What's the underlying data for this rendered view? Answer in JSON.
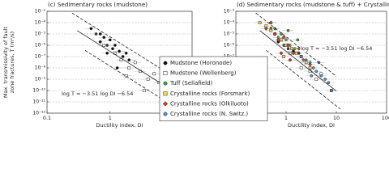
{
  "chart_data": [
    {
      "type": "scatter",
      "title": "(c) Sedimentary rocks (mudstone)",
      "xlabel": "Ductility index, DI",
      "ylabel": [
        "Max. transmissivity of fault",
        "zone fractures, T (m²/s)"
      ],
      "xscale": "log",
      "yscale": "log",
      "grid": true,
      "xlim": [
        0.1,
        20
      ],
      "ylim": [
        1e-12,
        0.001
      ],
      "xticks": [
        0.1,
        1,
        10
      ],
      "yticks": [
        {
          "value": 0.001,
          "label": "10⁻³"
        },
        {
          "value": 0.0001,
          "label": "10⁻⁴"
        },
        {
          "value": 1e-05,
          "label": "10⁻⁵"
        },
        {
          "value": 1e-06,
          "label": "10⁻⁶"
        },
        {
          "value": 1e-07,
          "label": "10⁻⁷"
        },
        {
          "value": 1e-08,
          "label": "10⁻⁸"
        },
        {
          "value": 1e-09,
          "label": "10⁻⁹"
        },
        {
          "value": 1e-10,
          "label": "10⁻¹⁰"
        },
        {
          "value": 1e-11,
          "label": "10⁻¹¹"
        },
        {
          "value": 1e-12,
          "label": "10⁻¹²"
        }
      ],
      "series": [
        {
          "marker": "circle",
          "color": "#111111",
          "x": [
            0.5,
            0.6,
            0.7,
            0.8,
            0.9,
            1.0,
            1.1,
            1.2,
            1.4,
            1.6,
            1.8,
            2.0,
            0.7,
            0.9,
            1.3
          ],
          "y": [
            3e-05,
            1e-05,
            2e-06,
            5e-06,
            1e-06,
            3e-06,
            5e-07,
            1e-06,
            3e-07,
            1e-07,
            2e-07,
            5e-08,
            1e-05,
            2e-07,
            1e-08
          ]
        },
        {
          "marker": "square",
          "color": "#ffffff",
          "x": [
            0.8,
            1.2,
            1.5,
            2,
            2.5,
            3,
            4,
            5,
            6,
            8,
            1.8,
            3.5
          ],
          "y": [
            1e-06,
            2e-07,
            5e-08,
            1e-08,
            3e-08,
            5e-09,
            1e-09,
            3e-09,
            5e-10,
            1e-10,
            2e-09,
            1e-10
          ]
        }
      ],
      "lines": [
        {
          "style": "solid",
          "x": [
            0.3,
            10
          ],
          "y": [
            2e-05,
            9e-11
          ]
        },
        {
          "style": "dashed",
          "x": [
            0.25,
            10
          ],
          "y": [
            0.0007,
            1.8e-09
          ]
        },
        {
          "style": "dashed",
          "x": [
            0.4,
            12
          ],
          "y": [
            3.6e-07,
            2.3e-12
          ]
        }
      ],
      "annotation": "log T = −3.51 log DI −6.54"
    },
    {
      "type": "scatter",
      "title": "(d) Sedimentary rocks (mudstone & tuff) + Crystalline rocks",
      "xlabel": "Ductility index, DI",
      "xscale": "log",
      "yscale": "log",
      "grid": true,
      "legend": "lower left",
      "xlim": [
        0.1,
        100
      ],
      "ylim": [
        1e-12,
        0.001
      ],
      "xticks": [
        0.1,
        1,
        10,
        100
      ],
      "yticks": [
        {
          "value": 0.001,
          "label": "10⁻³"
        },
        {
          "value": 0.0001,
          "label": "10⁻⁴"
        },
        {
          "value": 1e-05,
          "label": "10⁻⁵"
        },
        {
          "value": 1e-06,
          "label": "10⁻⁶"
        },
        {
          "value": 1e-07,
          "label": "10⁻⁷"
        },
        {
          "value": 1e-08,
          "label": "10⁻⁸"
        },
        {
          "value": 1e-09,
          "label": "10⁻⁹"
        },
        {
          "value": 1e-10,
          "label": "10⁻¹⁰"
        },
        {
          "value": 1e-11,
          "label": "10⁻¹¹"
        },
        {
          "value": 1e-12,
          "label": "10⁻¹²"
        }
      ],
      "series": [
        {
          "name": "Mudstone (Horonode)",
          "marker": "circle",
          "color": "#111111",
          "x": [
            0.5,
            0.7,
            0.9,
            1.1,
            1.4,
            1.8,
            0.8
          ],
          "y": [
            3e-05,
            2e-06,
            1e-06,
            5e-07,
            3e-07,
            2e-07,
            1e-05
          ]
        },
        {
          "name": "Mudstone (Wellenberg)",
          "marker": "square",
          "color": "#ffffff",
          "x": [
            1.2,
            2,
            3,
            5,
            8,
            4
          ],
          "y": [
            2e-07,
            1e-08,
            5e-09,
            3e-09,
            1e-10,
            1e-09
          ]
        },
        {
          "name": "Tuff (Sellafield)",
          "marker": "circle",
          "color": "#3aa53a",
          "x": [
            0.5,
            0.6,
            0.8,
            1.0,
            1.2,
            1.5,
            2.0,
            0.7,
            1.1,
            1.7
          ],
          "y": [
            0.0001,
            3e-05,
            1e-05,
            3e-06,
            1e-06,
            5e-07,
            1e-07,
            5e-06,
            2e-05,
            3e-06
          ]
        },
        {
          "name": "Crystalline rocks (Forsmark)",
          "marker": "square",
          "color": "#f2e34a",
          "x": [
            0.3,
            0.4,
            0.5,
            0.6,
            0.8,
            1.0,
            1.3,
            1.6,
            2.0,
            2.5,
            3.0,
            0.9
          ],
          "y": [
            0.0001,
            5e-05,
            2e-05,
            1e-05,
            3e-06,
            1e-06,
            5e-07,
            2e-07,
            1e-07,
            3e-08,
            1e-08,
            1e-07
          ]
        },
        {
          "name": "Crystalline rocks (Olkiluoto)",
          "marker": "diamond",
          "color": "#d23c2a",
          "x": [
            0.4,
            0.5,
            0.6,
            0.7,
            0.9,
            1.1,
            1.4,
            1.8,
            2.2,
            3.0,
            0.8,
            1.2
          ],
          "y": [
            3e-05,
            0.0001,
            1e-05,
            3e-06,
            5e-06,
            1e-06,
            2e-07,
            5e-07,
            5e-08,
            2e-08,
            2e-07,
            5e-08
          ]
        },
        {
          "name": "Crystalline rocks (N. Switz.)",
          "marker": "circle",
          "color": "#5b8fd6",
          "x": [
            2,
            2.5,
            3,
            3.5,
            4,
            5,
            6,
            7,
            8,
            4.5,
            3.2
          ],
          "y": [
            1e-07,
            5e-08,
            3e-08,
            1e-08,
            5e-09,
            2e-09,
            1e-09,
            5e-10,
            1e-10,
            3e-08,
            2e-09
          ]
        }
      ],
      "lines": [
        {
          "style": "solid",
          "x": [
            0.3,
            10
          ],
          "y": [
            2e-05,
            9e-11
          ]
        },
        {
          "style": "dashed",
          "x": [
            0.25,
            10
          ],
          "y": [
            0.0007,
            1.8e-09
          ]
        },
        {
          "style": "dashed",
          "x": [
            0.4,
            12
          ],
          "y": [
            3.6e-07,
            2.3e-12
          ]
        }
      ],
      "annotation": "log T = −3.51 log DI −6.54"
    }
  ]
}
